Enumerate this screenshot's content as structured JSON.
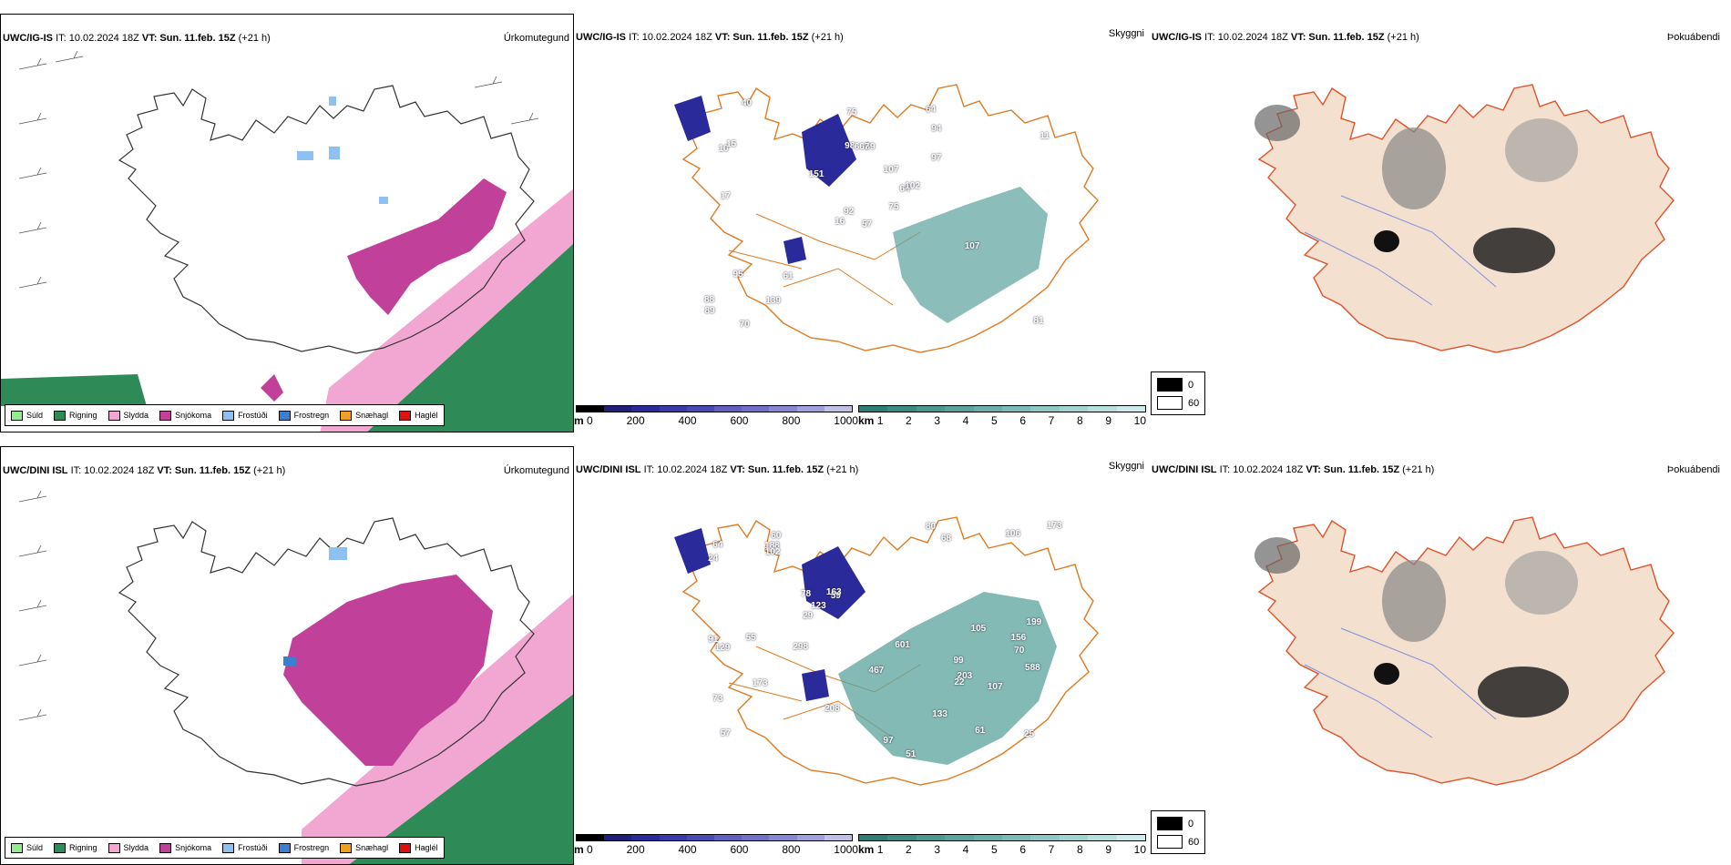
{
  "panels": [
    {
      "id": "top-left",
      "model": "UWC/IG-IS",
      "run": "IT: 10.02.2024 18Z",
      "valid_prefix": "VT:",
      "valid": "Sun. 11.feb. 15Z",
      "lead": "(+21 h)",
      "field": "Úrkomutegund"
    },
    {
      "id": "top-mid",
      "model": "UWC/IG-IS",
      "run": "IT: 10.02.2024 18Z",
      "valid_prefix": "VT:",
      "valid": "Sun. 11.feb. 15Z",
      "lead": "(+21 h)",
      "field": "Skyggni"
    },
    {
      "id": "top-right",
      "model": "UWC/IG-IS",
      "run": "IT: 10.02.2024 18Z",
      "valid_prefix": "VT:",
      "valid": "Sun. 11.feb. 15Z",
      "lead": "(+21 h)",
      "field": "Þokuábendi"
    },
    {
      "id": "bot-left",
      "model": "UWC/DINI ISL",
      "run": "IT: 10.02.2024 18Z",
      "valid_prefix": "VT:",
      "valid": "Sun. 11.feb. 15Z",
      "lead": "(+21 h)",
      "field": "Úrkomutegund"
    },
    {
      "id": "bot-mid",
      "model": "UWC/DINI ISL",
      "run": "IT: 10.02.2024 18Z",
      "valid_prefix": "VT:",
      "valid": "Sun. 11.feb. 15Z",
      "lead": "(+21 h)",
      "field": "Skyggni"
    },
    {
      "id": "bot-right",
      "model": "UWC/DINI ISL",
      "run": "IT: 10.02.2024 18Z",
      "valid_prefix": "VT:",
      "valid": "Sun. 11.feb. 15Z",
      "lead": "(+21 h)",
      "field": "Þokuábendi"
    }
  ],
  "precip_legend": [
    {
      "label": "Súld",
      "color": "#90ee90"
    },
    {
      "label": "Rigning",
      "color": "#2e8b57"
    },
    {
      "label": "Slydda",
      "color": "#f1a7d2"
    },
    {
      "label": "Snjókoma",
      "color": "#c0409a"
    },
    {
      "label": "Frostúði",
      "color": "#8ec1f2"
    },
    {
      "label": "Frostregn",
      "color": "#3a7fd0"
    },
    {
      "label": "Snæhagl",
      "color": "#f0a020"
    },
    {
      "label": "Haglél",
      "color": "#e01010"
    }
  ],
  "visibility_scale_m": {
    "unit": "m",
    "ticks": [
      "0",
      "200",
      "400",
      "600",
      "800",
      "1000"
    ],
    "colors": [
      "#000000",
      "#20207a",
      "#2a2a9a",
      "#3a3aaa",
      "#4a4ab4",
      "#6060c0",
      "#7070c8",
      "#8888d2",
      "#a0a0dc",
      "#c0c0e6"
    ]
  },
  "visibility_scale_km": {
    "unit": "km",
    "ticks": [
      "1",
      "2",
      "3",
      "4",
      "5",
      "6",
      "7",
      "8",
      "9",
      "10"
    ],
    "colors": [
      "#2e7d77",
      "#3c8a84",
      "#4b9791",
      "#5aa39e",
      "#6aafab",
      "#7bbcb8",
      "#8dc8c5",
      "#a0d4d2",
      "#b5e0de",
      "#cdebea"
    ]
  },
  "fog_key": [
    {
      "label": "0",
      "color": "#000000"
    },
    {
      "label": "60",
      "color": "#ffffff"
    }
  ],
  "vis_labels_top": [
    "57",
    "10",
    "92",
    "88",
    "64",
    "61",
    "64",
    "89",
    "94",
    "75",
    "40",
    "81",
    "17",
    "11",
    "16",
    "97",
    "70",
    "98",
    "107",
    "95",
    "151",
    "89",
    "139",
    "667",
    "102",
    "107",
    "15",
    "75"
  ],
  "vis_labels_bottom": [
    "99",
    "70",
    "57",
    "60",
    "59",
    "61",
    "73",
    "68",
    "78",
    "51",
    "24",
    "91",
    "64",
    "25",
    "208",
    "199",
    "467",
    "601",
    "163",
    "173",
    "173",
    "106",
    "29",
    "588",
    "80",
    "188",
    "203",
    "129",
    "102",
    "105",
    "97",
    "133",
    "123",
    "298",
    "156",
    "107",
    "22",
    "55"
  ]
}
